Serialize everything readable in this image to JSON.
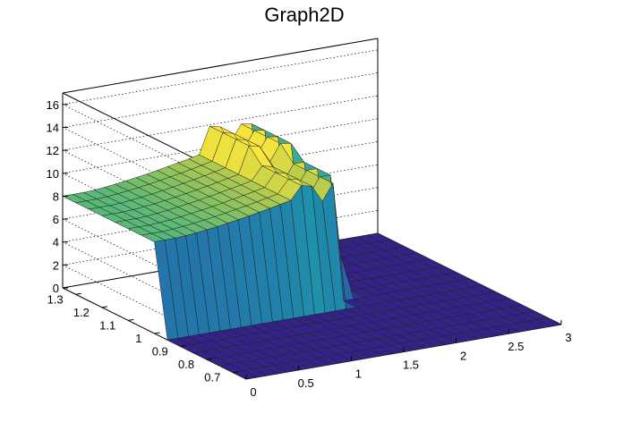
{
  "chart_data": {
    "type": "surface",
    "title": "Graph2D",
    "xlabel": "",
    "ylabel": "",
    "zlabel": "",
    "x_ticks": [
      "0",
      "0.5",
      "1",
      "1.5",
      "2",
      "2.5",
      "3"
    ],
    "y_ticks": [
      "0.7",
      "0.8",
      "0.9",
      "1",
      "1.1",
      "1.2",
      "1.3"
    ],
    "z_ticks": [
      "0",
      "2",
      "4",
      "6",
      "8",
      "10",
      "12",
      "14",
      "16"
    ],
    "xlim": [
      0,
      3
    ],
    "ylim": [
      0.65,
      1.35
    ],
    "zlim": [
      0,
      17
    ],
    "grid": true,
    "colormap": "viridis-like (dark blue to yellow)",
    "regions": [
      {
        "x": [
          0.0,
          1.73
        ],
        "y": [
          1.0,
          1.35
        ],
        "z_approx": [
          8.0,
          10.5
        ],
        "note": "plateau rising with x"
      },
      {
        "x": [
          1.3,
          1.8
        ],
        "y": [
          1.0,
          1.35
        ],
        "z_approx": [
          10.0,
          13.0
        ],
        "note": "ridge with spikes"
      },
      {
        "x": [
          1.8,
          1.95
        ],
        "y": [
          0.65,
          1.35
        ],
        "z_approx": [
          0.0,
          10.0
        ],
        "note": "steep drop"
      },
      {
        "x": [
          0.0,
          3.0
        ],
        "y": [
          0.65,
          1.0
        ],
        "z_approx": [
          0.0,
          0.0
        ],
        "note": "floor"
      }
    ]
  }
}
